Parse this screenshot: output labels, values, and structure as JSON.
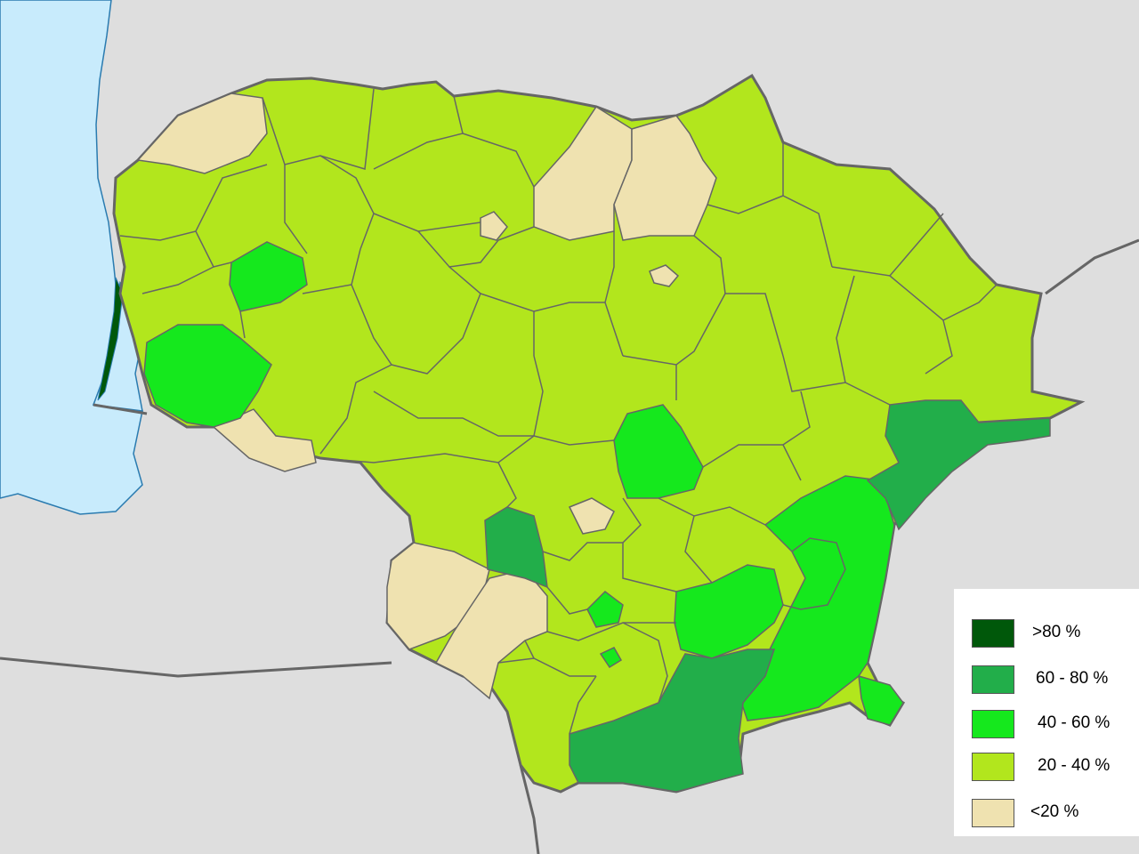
{
  "map": {
    "colors": {
      "sea": "#c8ebfc",
      "land_outside": "#dedede",
      "border": "#666666",
      "very_high": "#00580a",
      "high": "#22ae4a",
      "mid": "#15e81d",
      "low": "#b2e61d",
      "very_low": "#efe2b0"
    },
    "legend": [
      {
        "label": ">80 %",
        "color": "#00580a"
      },
      {
        "label": "60 - 80 %",
        "color": "#22ae4a"
      },
      {
        "label": "40 - 60 %",
        "color": "#15e81d"
      },
      {
        "label": "20 - 40 %",
        "color": "#b2e61d"
      },
      {
        "label": "<20 %",
        "color": "#efe2b0"
      }
    ]
  }
}
